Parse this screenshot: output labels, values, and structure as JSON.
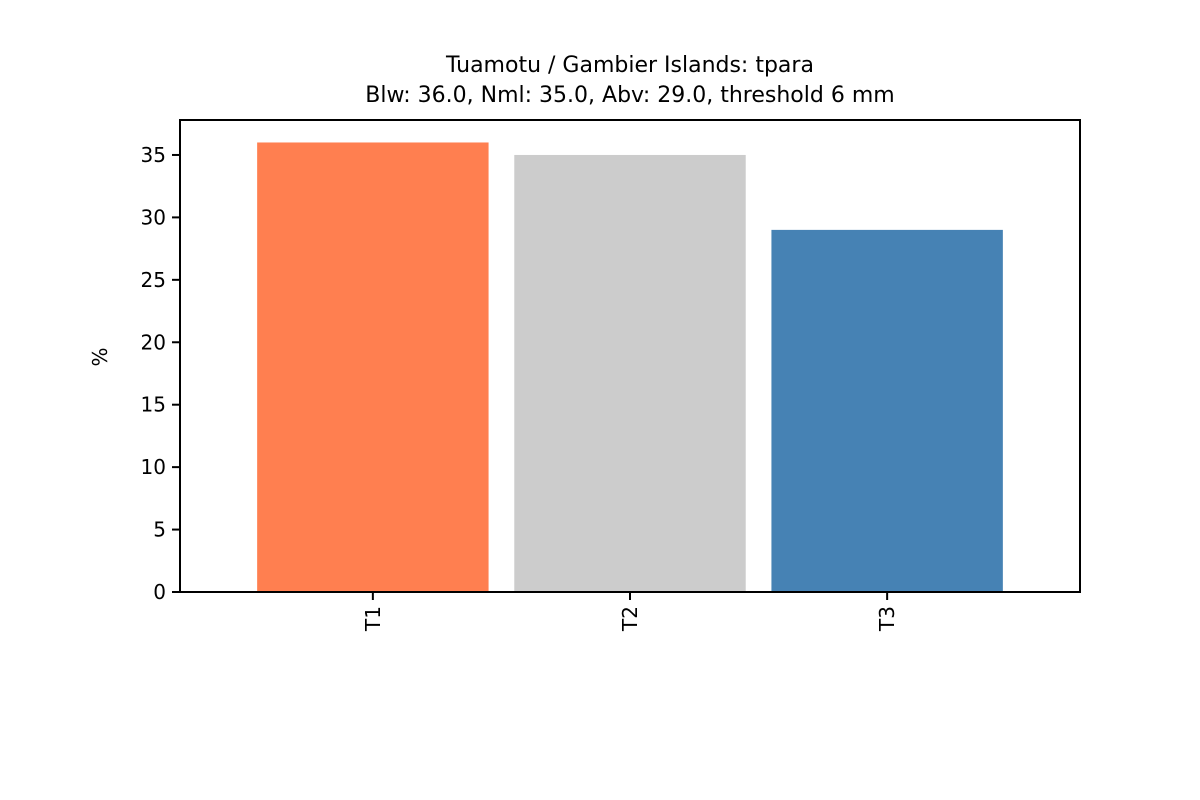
{
  "chart_data": {
    "type": "bar",
    "title": "Tuamotu / Gambier Islands: tpara",
    "subtitle": "Blw: 36.0, Nml: 35.0, Abv: 29.0, threshold 6 mm",
    "xlabel": "",
    "ylabel": "%",
    "categories": [
      "T1",
      "T2",
      "T3"
    ],
    "values": [
      36.0,
      35.0,
      29.0
    ],
    "colors": [
      "#ff7f50",
      "#cccccc",
      "#4682b4"
    ],
    "ylim": [
      0,
      37.8
    ],
    "yticks": [
      0,
      5,
      10,
      15,
      20,
      25,
      30,
      35
    ],
    "grid": false,
    "legend": "none"
  }
}
